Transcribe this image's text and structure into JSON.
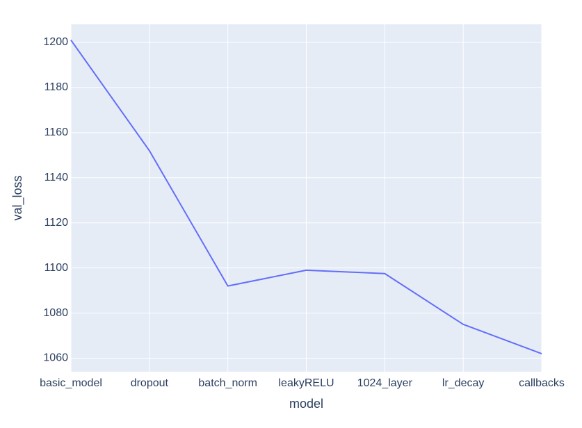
{
  "chart_data": {
    "type": "line",
    "title": "",
    "xlabel": "model",
    "ylabel": "val_loss",
    "categories": [
      "basic_model",
      "dropout",
      "batch_norm",
      "leakyRELU",
      "1024_layer",
      "lr_decay",
      "callbacks"
    ],
    "series": [
      {
        "values": [
          1201,
          1152,
          1092,
          1099,
          1097.5,
          1075,
          1062
        ],
        "color": "#636efa"
      }
    ],
    "ylim": [
      1054,
      1208
    ],
    "yticks": [
      1060,
      1080,
      1100,
      1120,
      1140,
      1160,
      1180,
      1200
    ],
    "grid": true,
    "legend": "none",
    "colors": {
      "plot_background": "#e5ecf6",
      "grid": "#ffffff",
      "text": "#2a3f5f"
    }
  }
}
